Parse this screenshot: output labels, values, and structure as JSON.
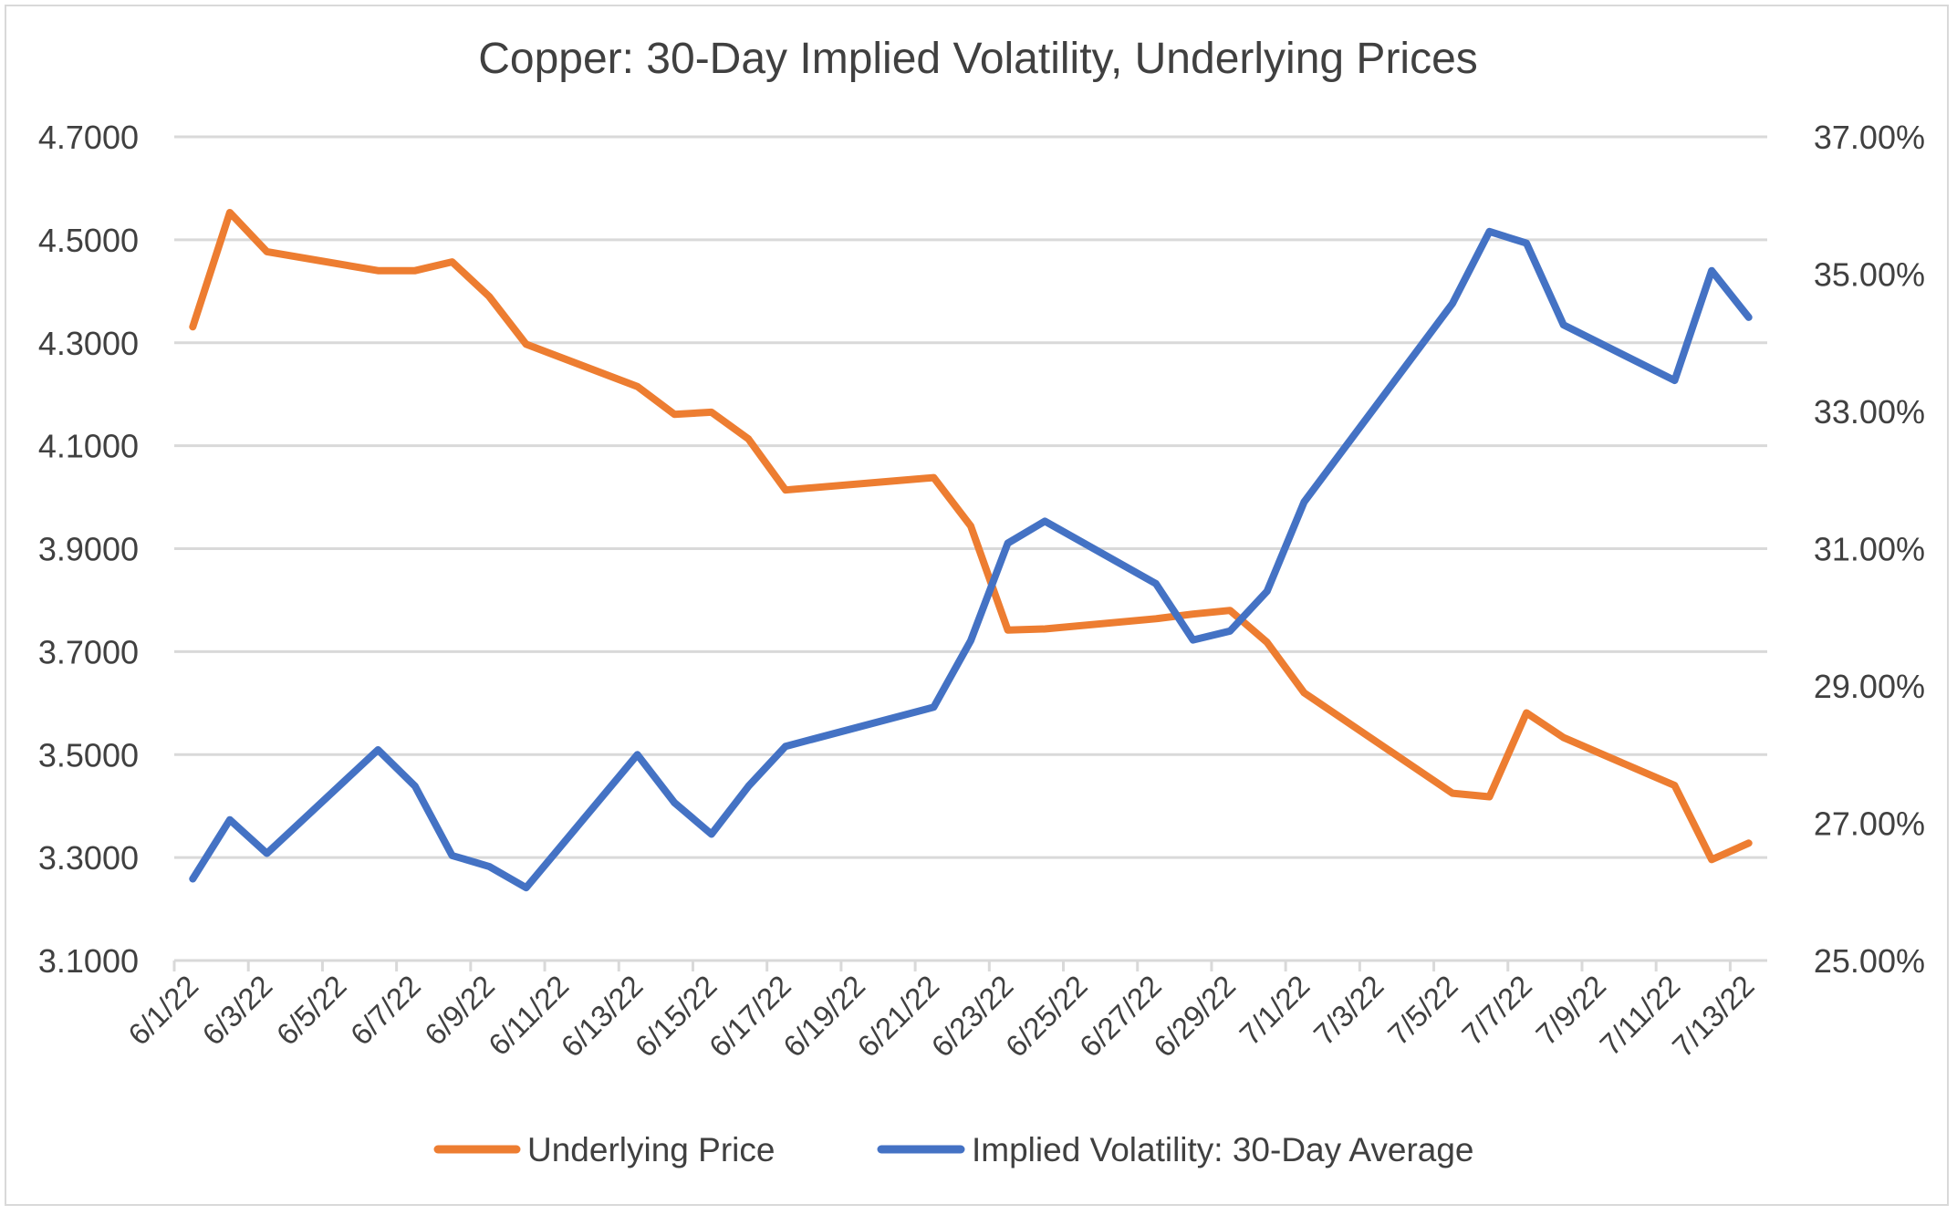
{
  "chart_data": {
    "type": "line",
    "title": "Copper: 30-Day Implied Volatility, Underlying Prices",
    "xlabel": "",
    "ylabel_left": "",
    "ylabel_right": "",
    "x_axis": {
      "type": "date",
      "start": "6/1/22",
      "end": "7/13/22",
      "tick_interval_days": 2,
      "tick_labels": [
        "6/1/22",
        "6/3/22",
        "6/5/22",
        "6/7/22",
        "6/9/22",
        "6/11/22",
        "6/13/22",
        "6/15/22",
        "6/17/22",
        "6/19/22",
        "6/21/22",
        "6/23/22",
        "6/25/22",
        "6/27/22",
        "6/29/22",
        "7/1/22",
        "7/3/22",
        "7/5/22",
        "7/7/22",
        "7/9/22",
        "7/11/22",
        "7/13/22"
      ]
    },
    "y_left": {
      "ylim": [
        3.1,
        4.7
      ],
      "tick_labels": [
        "3.1000",
        "3.3000",
        "3.5000",
        "3.7000",
        "3.9000",
        "4.1000",
        "4.3000",
        "4.5000",
        "4.7000"
      ],
      "ticks": [
        3.1,
        3.3,
        3.5,
        3.7,
        3.9,
        4.1,
        4.3,
        4.5,
        4.7
      ]
    },
    "y_right": {
      "ylim": [
        25,
        37
      ],
      "tick_labels": [
        "25.00%",
        "27.00%",
        "29.00%",
        "31.00%",
        "33.00%",
        "35.00%",
        "37.00%"
      ],
      "ticks": [
        25,
        27,
        29,
        31,
        33,
        35,
        37
      ]
    },
    "grid": true,
    "legend_position": "bottom",
    "x": [
      "6/1/22",
      "6/2/22",
      "6/3/22",
      "6/6/22",
      "6/7/22",
      "6/8/22",
      "6/9/22",
      "6/10/22",
      "6/13/22",
      "6/14/22",
      "6/15/22",
      "6/16/22",
      "6/17/22",
      "6/21/22",
      "6/22/22",
      "6/23/22",
      "6/24/22",
      "6/27/22",
      "6/28/22",
      "6/29/22",
      "6/30/22",
      "7/1/22",
      "7/5/22",
      "7/6/22",
      "7/7/22",
      "7/8/22",
      "7/11/22",
      "7/12/22",
      "7/13/22"
    ],
    "series": [
      {
        "name": "Underlying Price",
        "axis": "left",
        "color": "#ED7D31",
        "values": [
          4.331,
          4.553,
          4.477,
          4.44,
          4.44,
          4.457,
          4.39,
          4.297,
          4.215,
          4.161,
          4.165,
          4.113,
          4.014,
          4.038,
          3.944,
          3.742,
          3.744,
          3.764,
          3.773,
          3.78,
          3.718,
          3.62,
          3.425,
          3.418,
          3.581,
          3.533,
          3.44,
          3.296,
          3.328
        ]
      },
      {
        "name": "Implied Volatility: 30-Day Average",
        "axis": "right",
        "unit": "%",
        "color": "#4472C4",
        "values": [
          26.19,
          27.05,
          26.56,
          28.07,
          27.54,
          26.53,
          26.37,
          26.06,
          28.0,
          27.3,
          26.84,
          27.54,
          28.12,
          28.69,
          29.66,
          31.08,
          31.4,
          30.49,
          29.67,
          29.8,
          30.38,
          31.68,
          34.57,
          35.62,
          35.45,
          34.26,
          33.45,
          35.05,
          34.37
        ]
      }
    ]
  }
}
